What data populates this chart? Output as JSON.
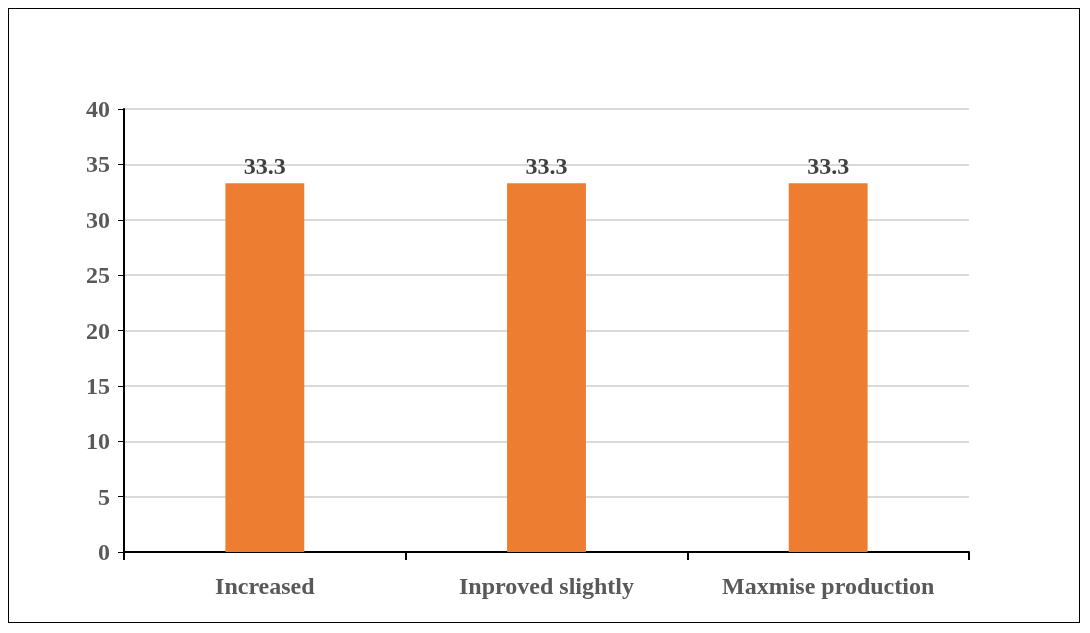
{
  "chart_data": {
    "type": "bar",
    "categories": [
      "Increased",
      "Inproved slightly",
      "Maxmise production"
    ],
    "values": [
      33.3,
      33.3,
      33.3
    ],
    "color": "#ed7d31",
    "ylim": [
      0,
      40
    ],
    "yticks": [
      0,
      5,
      10,
      15,
      20,
      25,
      30,
      35,
      40
    ],
    "grid": "y",
    "data_labels": true
  }
}
